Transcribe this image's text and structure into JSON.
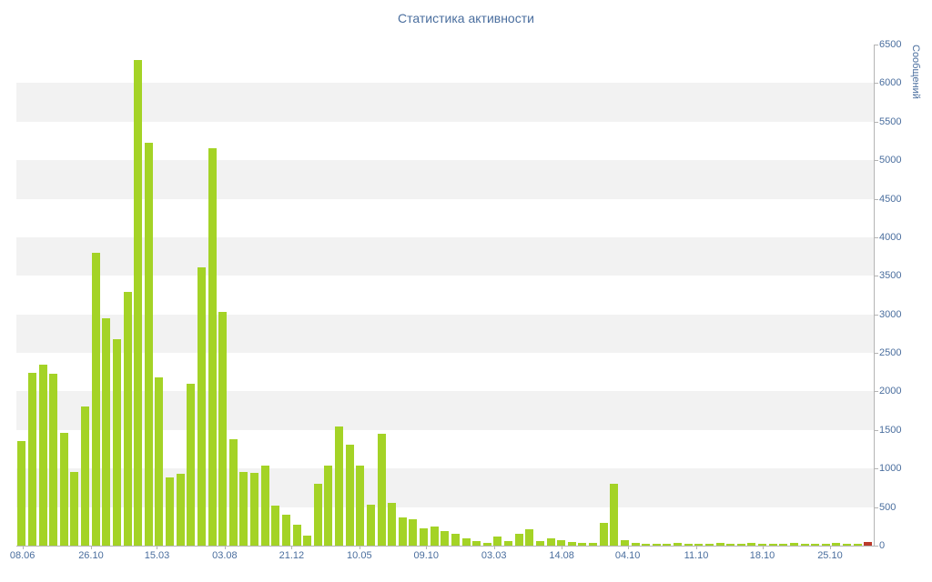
{
  "page": {
    "title": "Статистика активности"
  },
  "chart_data": {
    "type": "bar",
    "title": "Статистика активности",
    "xlabel": "",
    "ylabel": "Сообщений",
    "ylim": [
      0,
      6500
    ],
    "y_tick_step": 500,
    "y_ticks": [
      0,
      500,
      1000,
      1500,
      2000,
      2500,
      3000,
      3500,
      4000,
      4500,
      5000,
      5500,
      6000,
      6500
    ],
    "legend_position": "none",
    "grid": "alternating horizontal bands of 500 units",
    "bar_color": "#a4d326",
    "highlight_last_bar_color": "#bb3a2c",
    "stripe_color": "#f2f2f2",
    "axis_color": "#b4b4b4",
    "text_color": "#4a6e9e",
    "background_color": "#ffffff",
    "x_tick_labels": [
      {
        "text": "08.06",
        "pos": 0.7
      },
      {
        "text": "26.10",
        "pos": 8.7
      },
      {
        "text": "15.03",
        "pos": 16.4
      },
      {
        "text": "03.08",
        "pos": 24.3
      },
      {
        "text": "21.12",
        "pos": 32.1
      },
      {
        "text": "10.05",
        "pos": 40.0
      },
      {
        "text": "09.10",
        "pos": 47.8
      },
      {
        "text": "03.03",
        "pos": 55.7
      },
      {
        "text": "14.08",
        "pos": 63.6
      },
      {
        "text": "04.10",
        "pos": 71.3
      },
      {
        "text": "11.10",
        "pos": 79.3
      },
      {
        "text": "18.10",
        "pos": 87.0
      },
      {
        "text": "25.10",
        "pos": 94.9
      }
    ],
    "values": [
      1360,
      2240,
      2350,
      2230,
      1460,
      950,
      1800,
      3800,
      2950,
      2680,
      3290,
      6300,
      5230,
      2180,
      880,
      930,
      2100,
      3610,
      5160,
      3030,
      1380,
      950,
      940,
      1040,
      520,
      400,
      270,
      130,
      800,
      1040,
      1540,
      1310,
      1040,
      530,
      1450,
      560,
      360,
      340,
      220,
      250,
      190,
      150,
      90,
      60,
      40,
      120,
      60,
      150,
      210,
      60,
      100,
      70,
      50,
      40,
      30,
      290,
      800,
      70,
      30,
      20,
      25,
      20,
      30,
      20,
      25,
      20,
      30,
      25,
      20,
      30,
      20,
      25,
      20,
      30,
      20,
      25,
      20,
      30,
      20,
      25,
      50
    ]
  }
}
